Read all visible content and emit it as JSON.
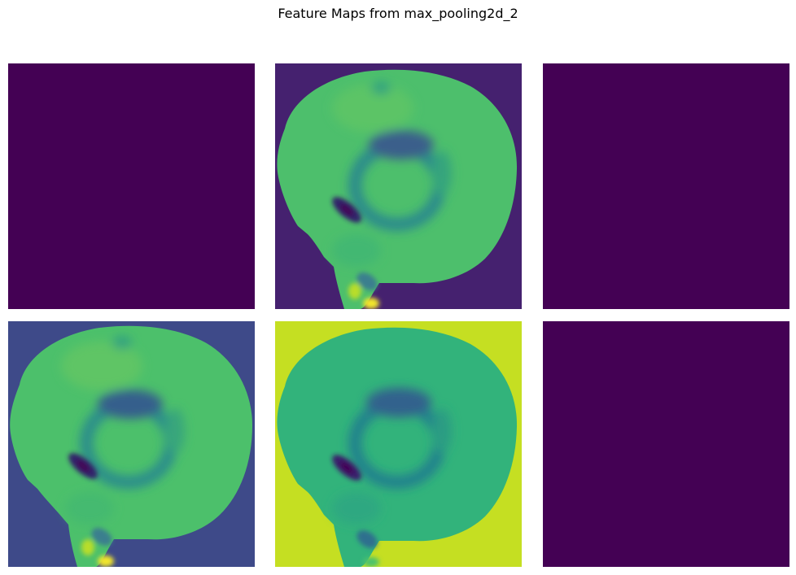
{
  "figure": {
    "title": "Feature Maps from max_pooling2d_2",
    "colormap": "viridis",
    "colors": {
      "viridis_min": "#440154",
      "deep_purple": "#45216f",
      "slate_blue": "#3e4c8a",
      "teal_dark": "#2a788e",
      "teal": "#21918c",
      "green_teal": "#29af7f",
      "green": "#4fc36a",
      "lime": "#8bd646",
      "yellow_green": "#c7e020",
      "viridis_max": "#fde725"
    }
  },
  "panels": [
    {
      "name": "feature-map-1",
      "background": "#440154",
      "has_content": false
    },
    {
      "name": "feature-map-2",
      "background": "#45216f",
      "has_content": true,
      "body": "#4dbf6c"
    },
    {
      "name": "feature-map-3",
      "background": "#440154",
      "has_content": false
    },
    {
      "name": "feature-map-4",
      "background": "#3e4a89",
      "has_content": true,
      "body": "#4cc06b"
    },
    {
      "name": "feature-map-5",
      "background": "#c5df22",
      "has_content": true,
      "body": "#32b37b"
    },
    {
      "name": "feature-map-6",
      "background": "#440154",
      "has_content": false
    }
  ]
}
